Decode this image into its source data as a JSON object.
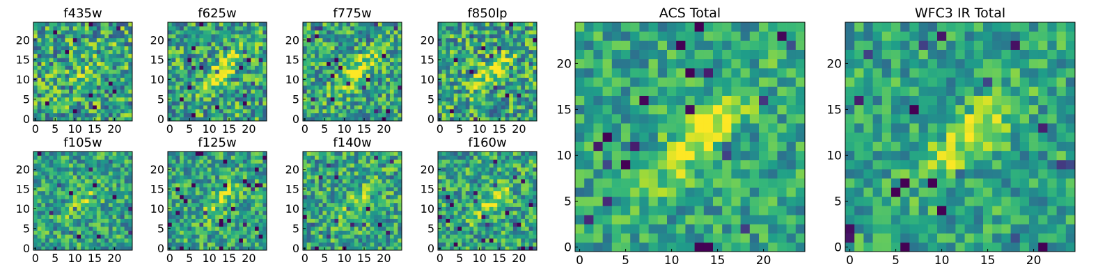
{
  "chart_data": [
    {
      "type": "heatmap",
      "title": "f435w",
      "size": 25,
      "xticks": [
        0,
        5,
        10,
        15,
        20
      ],
      "yticks": [
        0,
        5,
        10,
        15,
        20
      ],
      "xlim": [
        0,
        24
      ],
      "ylim": [
        0,
        24
      ],
      "colormap": "viridis",
      "seed": 11,
      "noise": 0.34,
      "blob_strength": 0.12
    },
    {
      "type": "heatmap",
      "title": "f625w",
      "size": 25,
      "xticks": [
        0,
        5,
        10,
        15,
        20
      ],
      "yticks": [
        0,
        5,
        10,
        15,
        20
      ],
      "xlim": [
        0,
        24
      ],
      "ylim": [
        0,
        24
      ],
      "colormap": "viridis",
      "seed": 23,
      "noise": 0.32,
      "blob_strength": 0.38
    },
    {
      "type": "heatmap",
      "title": "f775w",
      "size": 25,
      "xticks": [
        0,
        5,
        10,
        15,
        20
      ],
      "yticks": [
        0,
        5,
        10,
        15,
        20
      ],
      "xlim": [
        0,
        24
      ],
      "ylim": [
        0,
        24
      ],
      "colormap": "viridis",
      "seed": 37,
      "noise": 0.3,
      "blob_strength": 0.4
    },
    {
      "type": "heatmap",
      "title": "f850lp",
      "size": 25,
      "xticks": [
        0,
        5,
        10,
        15,
        20
      ],
      "yticks": [
        0,
        5,
        10,
        15,
        20
      ],
      "xlim": [
        0,
        24
      ],
      "ylim": [
        0,
        24
      ],
      "colormap": "viridis",
      "seed": 41,
      "noise": 0.32,
      "blob_strength": 0.34
    },
    {
      "type": "heatmap",
      "title": "f105w",
      "size": 25,
      "xticks": [
        0,
        5,
        10,
        15,
        20
      ],
      "yticks": [
        0,
        5,
        10,
        15,
        20
      ],
      "xlim": [
        0,
        24
      ],
      "ylim": [
        0,
        24
      ],
      "colormap": "viridis",
      "seed": 53,
      "noise": 0.26,
      "blob_strength": 0.22
    },
    {
      "type": "heatmap",
      "title": "f125w",
      "size": 25,
      "xticks": [
        0,
        5,
        10,
        15,
        20
      ],
      "yticks": [
        0,
        5,
        10,
        15,
        20
      ],
      "xlim": [
        0,
        24
      ],
      "ylim": [
        0,
        24
      ],
      "colormap": "viridis",
      "seed": 67,
      "noise": 0.26,
      "blob_strength": 0.24
    },
    {
      "type": "heatmap",
      "title": "f140w",
      "size": 25,
      "xticks": [
        0,
        5,
        10,
        15,
        20
      ],
      "yticks": [
        0,
        5,
        10,
        15,
        20
      ],
      "xlim": [
        0,
        24
      ],
      "ylim": [
        0,
        24
      ],
      "colormap": "viridis",
      "seed": 79,
      "noise": 0.28,
      "blob_strength": 0.22
    },
    {
      "type": "heatmap",
      "title": "f160w",
      "size": 25,
      "xticks": [
        0,
        5,
        10,
        15,
        20
      ],
      "yticks": [
        0,
        5,
        10,
        15,
        20
      ],
      "xlim": [
        0,
        24
      ],
      "ylim": [
        0,
        24
      ],
      "colormap": "viridis",
      "seed": 83,
      "noise": 0.28,
      "blob_strength": 0.24
    },
    {
      "type": "heatmap",
      "title": "ACS Total",
      "size": 25,
      "xticks": [
        0,
        5,
        10,
        15,
        20
      ],
      "yticks": [
        0,
        5,
        10,
        15,
        20
      ],
      "xlim": [
        0,
        24
      ],
      "ylim": [
        0,
        24
      ],
      "colormap": "viridis",
      "seed": 97,
      "noise": 0.22,
      "blob_strength": 0.42
    },
    {
      "type": "heatmap",
      "title": "WFC3 IR Total",
      "size": 25,
      "xticks": [
        0,
        5,
        10,
        15,
        20
      ],
      "yticks": [
        0,
        5,
        10,
        15,
        20
      ],
      "xlim": [
        0,
        24
      ],
      "ylim": [
        0,
        24
      ],
      "colormap": "viridis",
      "seed": 101,
      "noise": 0.22,
      "blob_strength": 0.34
    }
  ]
}
